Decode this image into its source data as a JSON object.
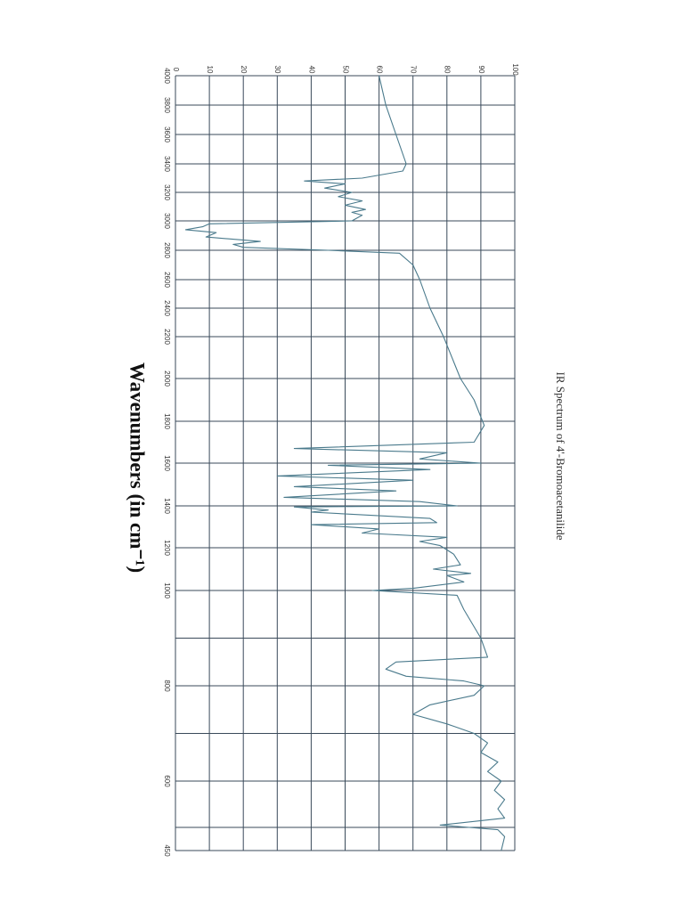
{
  "chart_data": {
    "type": "line",
    "title": "IR Spectrum of 4'-Bromoacetanilide",
    "x_label": "Wavenumbers (in cm⁻¹)",
    "color": "#4a7a8c",
    "grid": true,
    "xlim": [
      4000,
      450
    ],
    "xticks": [
      4000,
      3800,
      3600,
      3400,
      3200,
      3000,
      2800,
      2600,
      2400,
      2200,
      2000,
      1800,
      1600,
      1400,
      1200,
      1000,
      800,
      600,
      450
    ],
    "xticks_minor": [
      900,
      700,
      500
    ],
    "ylim": [
      0,
      100
    ],
    "yticks": [
      0,
      10,
      20,
      30,
      40,
      50,
      60,
      70,
      80,
      90,
      100
    ],
    "x": [
      4000,
      3800,
      3600,
      3400,
      3350,
      3300,
      3280,
      3260,
      3230,
      3200,
      3170,
      3140,
      3110,
      3080,
      3060,
      3040,
      3000,
      2980,
      2960,
      2940,
      2920,
      2890,
      2860,
      2840,
      2820,
      2800,
      2780,
      2700,
      2600,
      2400,
      2200,
      2000,
      1900,
      1820,
      1780,
      1700,
      1670,
      1650,
      1620,
      1600,
      1590,
      1570,
      1540,
      1520,
      1490,
      1470,
      1440,
      1420,
      1400,
      1395,
      1380,
      1370,
      1340,
      1320,
      1310,
      1290,
      1270,
      1250,
      1230,
      1210,
      1190,
      1170,
      1120,
      1100,
      1080,
      1070,
      1040,
      1010,
      1000,
      990,
      960,
      900,
      860,
      850,
      835,
      820,
      810,
      800,
      780,
      760,
      740,
      720,
      700,
      680,
      660,
      640,
      620,
      600,
      580,
      560,
      540,
      520,
      505,
      495,
      480,
      450
    ],
    "values": [
      60,
      62,
      65,
      68,
      67,
      55,
      38,
      50,
      44,
      52,
      48,
      55,
      50,
      56,
      52,
      55,
      52,
      10,
      8,
      3,
      12,
      9,
      25,
      17,
      20,
      45,
      66,
      70,
      72,
      75,
      79,
      84,
      88,
      90,
      91,
      88,
      35,
      80,
      72,
      90,
      45,
      75,
      30,
      70,
      35,
      65,
      32,
      72,
      83,
      35,
      45,
      40,
      75,
      77,
      40,
      60,
      55,
      80,
      72,
      78,
      80,
      82,
      84,
      76,
      87,
      80,
      85,
      70,
      58,
      83,
      85,
      90,
      92,
      65,
      62,
      68,
      85,
      91,
      88,
      75,
      70,
      80,
      88,
      92,
      90,
      95,
      92,
      96,
      94,
      97,
      95,
      97,
      78,
      95,
      97,
      96
    ]
  }
}
